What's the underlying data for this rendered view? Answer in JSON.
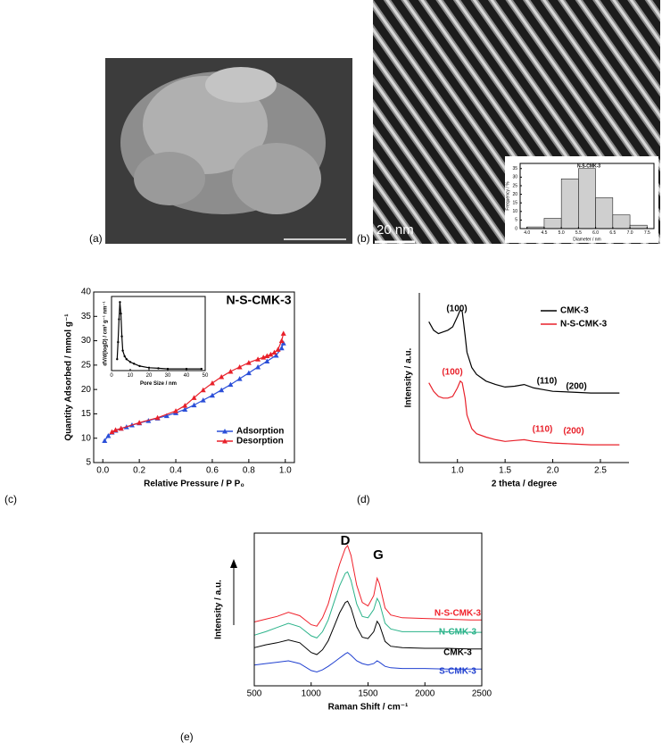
{
  "panels": {
    "a": {
      "label": "(a)"
    },
    "b": {
      "label": "(b)",
      "scale_bar": "20 nm"
    },
    "c": {
      "label": "(c)"
    },
    "d": {
      "label": "(d)"
    },
    "e": {
      "label": "(e)"
    }
  },
  "chart_data": [
    {
      "type": "histogram",
      "title": "N-S-CMK-3",
      "x_label": "Diameter / nm",
      "y_label": "Frequency / %",
      "bins": [
        4.0,
        4.5,
        5.0,
        5.5,
        6.0,
        6.5,
        7.0,
        7.5
      ],
      "values": [
        1,
        6,
        29,
        35,
        18,
        8,
        2
      ],
      "color": "#cfcfcf",
      "xlim": [
        3.8,
        7.7
      ],
      "ylim": [
        0,
        38
      ],
      "xticks": [
        {
          "value": 4.0,
          "label": "4.0"
        },
        {
          "value": 4.5,
          "label": "4.5"
        },
        {
          "value": 5.0,
          "label": "5.0"
        },
        {
          "value": 5.5,
          "label": "5.5"
        },
        {
          "value": 6.0,
          "label": "6.0"
        },
        {
          "value": 6.5,
          "label": "6.5"
        },
        {
          "value": 7.0,
          "label": "7.0"
        },
        {
          "value": 7.5,
          "label": "7.5"
        }
      ],
      "yticks": [
        0,
        5,
        10,
        15,
        20,
        25,
        30,
        35
      ]
    },
    {
      "type": "line",
      "title": "N-S-CMK-3",
      "x_label": "Relative Pressure / P P₀",
      "y_label": "Quantity Adsorbed / mmol g⁻¹",
      "xlim": [
        -0.05,
        1.05
      ],
      "ylim": [
        5,
        40
      ],
      "xticks": [
        {
          "value": 0,
          "label": "0.0"
        },
        {
          "value": 0.2,
          "label": "0.2"
        },
        {
          "value": 0.4,
          "label": "0.4"
        },
        {
          "value": 0.6,
          "label": "0.6"
        },
        {
          "value": 0.8,
          "label": "0.8"
        },
        {
          "value": 1.0,
          "label": "1.0"
        }
      ],
      "yticks": [
        5,
        10,
        15,
        20,
        25,
        30,
        35,
        40
      ],
      "marker": "triangle",
      "series": [
        {
          "name": "Adsorption",
          "color": "#2b4fd8",
          "x": [
            0.01,
            0.03,
            0.05,
            0.07,
            0.1,
            0.13,
            0.16,
            0.2,
            0.25,
            0.3,
            0.35,
            0.4,
            0.45,
            0.5,
            0.55,
            0.6,
            0.65,
            0.7,
            0.75,
            0.8,
            0.85,
            0.9,
            0.95,
            0.98,
            0.99
          ],
          "values": [
            9.5,
            10.5,
            11.2,
            11.6,
            12,
            12.3,
            12.7,
            13.1,
            13.6,
            14.1,
            14.6,
            15.2,
            15.9,
            16.8,
            17.8,
            18.8,
            19.9,
            21,
            22.2,
            23.4,
            24.6,
            25.8,
            27,
            28.5,
            29.5
          ]
        },
        {
          "name": "Desorption",
          "color": "#e8202a",
          "x": [
            0.99,
            0.98,
            0.96,
            0.94,
            0.92,
            0.9,
            0.88,
            0.85,
            0.8,
            0.75,
            0.7,
            0.65,
            0.6,
            0.55,
            0.5,
            0.45,
            0.4,
            0.3,
            0.2,
            0.1,
            0.07,
            0.05
          ],
          "values": [
            31.5,
            30,
            28.2,
            27.6,
            27.2,
            26.9,
            26.6,
            26.2,
            25.5,
            24.6,
            23.7,
            22.6,
            21.3,
            19.9,
            18.3,
            16.7,
            15.6,
            14.2,
            13.2,
            12,
            11.7,
            11.3
          ]
        }
      ]
    },
    {
      "type": "line",
      "x_label": "Pore Size / nm",
      "y_label": "dV/d(logD) / cm³ g⁻¹ nm⁻¹",
      "xlim": [
        0,
        50
      ],
      "ylim": [
        0,
        1.3
      ],
      "xticks": [
        0,
        10,
        20,
        30,
        40,
        50
      ],
      "marker": "dot",
      "series": [
        {
          "color": "#000000",
          "x": [
            3,
            3.5,
            4,
            4.5,
            5,
            5.5,
            6,
            7,
            8,
            10,
            12,
            15,
            20,
            25,
            30,
            40,
            48
          ],
          "values": [
            0.2,
            0.5,
            0.9,
            1.2,
            1.0,
            0.6,
            0.35,
            0.25,
            0.2,
            0.15,
            0.12,
            0.08,
            0.05,
            0.04,
            0.03,
            0.03,
            0.03
          ]
        }
      ]
    },
    {
      "type": "line",
      "x_label": "2 theta / degree",
      "y_label": "Intensity / a.u.",
      "xlim": [
        0.6,
        2.8
      ],
      "ylim": [
        0,
        10
      ],
      "xticks": [
        {
          "value": 1.0,
          "label": "1.0"
        },
        {
          "value": 1.5,
          "label": "1.5"
        },
        {
          "value": 2.0,
          "label": "2.0"
        },
        {
          "value": 2.5,
          "label": "2.5"
        }
      ],
      "x": [
        0.7,
        0.75,
        0.8,
        0.85,
        0.9,
        0.95,
        1.0,
        1.03,
        1.05,
        1.08,
        1.1,
        1.15,
        1.2,
        1.3,
        1.4,
        1.5,
        1.6,
        1.7,
        1.8,
        1.9,
        2.0,
        2.2,
        2.4,
        2.7
      ],
      "series": [
        {
          "name": "CMK-3",
          "color": "#000000",
          "values": [
            8.3,
            7.8,
            7.6,
            7.7,
            7.8,
            8.0,
            8.6,
            9.0,
            8.9,
            7.5,
            6.5,
            5.6,
            5.2,
            4.8,
            4.6,
            4.45,
            4.5,
            4.6,
            4.4,
            4.3,
            4.2,
            4.15,
            4.1,
            4.1
          ]
        },
        {
          "name": "N-S-CMK-3",
          "color": "#e8202a",
          "values": [
            4.7,
            4.2,
            3.9,
            3.8,
            3.8,
            3.9,
            4.4,
            4.8,
            4.7,
            3.8,
            2.8,
            2.0,
            1.7,
            1.5,
            1.35,
            1.25,
            1.3,
            1.35,
            1.25,
            1.2,
            1.15,
            1.1,
            1.05,
            1.05
          ]
        }
      ],
      "annotations": [
        {
          "text": "(100)",
          "color": "#000000"
        },
        {
          "text": "(110)",
          "color": "#000000"
        },
        {
          "text": "(200)",
          "color": "#000000"
        },
        {
          "text": "(100)",
          "color": "#e8202a"
        },
        {
          "text": "(110)",
          "color": "#e8202a"
        },
        {
          "text": "(200)",
          "color": "#e8202a"
        }
      ]
    },
    {
      "type": "line",
      "x_label": "Raman Shift / cm⁻¹",
      "y_label": "Intensity / a.u.",
      "xlim": [
        500,
        2500
      ],
      "ylim": [
        -1,
        21
      ],
      "xticks": [
        500,
        1000,
        1500,
        2000,
        2500
      ],
      "x": [
        500,
        600,
        700,
        800,
        900,
        1000,
        1050,
        1100,
        1150,
        1200,
        1250,
        1300,
        1320,
        1350,
        1400,
        1450,
        1500,
        1550,
        1580,
        1600,
        1650,
        1700,
        1800,
        2000,
        2200,
        2400,
        2500
      ],
      "series": [
        {
          "name": "N-S-CMK-3",
          "color": "#f0202a",
          "values": [
            8.2,
            8.6,
            9.0,
            9.6,
            9.1,
            7.8,
            7.6,
            8.8,
            10.8,
            13.8,
            16.5,
            18.8,
            19.2,
            17.8,
            13.5,
            11.0,
            10.5,
            12.0,
            14.5,
            13.7,
            10.2,
            9.2,
            8.8,
            8.7,
            8.6,
            8.5,
            8.5
          ]
        },
        {
          "name": "N-CMK-3",
          "color": "#2bb38a",
          "values": [
            6.3,
            6.8,
            7.4,
            8.0,
            7.5,
            6.2,
            5.9,
            6.8,
            8.5,
            11.0,
            13.4,
            15.2,
            15.4,
            14.2,
            10.8,
            9.0,
            8.8,
            10.0,
            11.6,
            11.0,
            8.0,
            7.2,
            6.8,
            6.8,
            6.8,
            6.7,
            6.7
          ]
        },
        {
          "name": "CMK-3",
          "color": "#000000",
          "values": [
            4.5,
            4.9,
            5.2,
            5.6,
            5.2,
            3.8,
            3.5,
            4.2,
            5.5,
            7.5,
            9.5,
            11.0,
            11.2,
            10.2,
            7.5,
            6.0,
            5.8,
            6.8,
            8.3,
            7.8,
            5.4,
            4.7,
            4.5,
            4.4,
            4.4,
            4.3,
            4.3
          ]
        },
        {
          "name": "S-CMK-3",
          "color": "#2040d0",
          "values": [
            2.0,
            2.2,
            2.4,
            2.6,
            2.2,
            1.2,
            1.0,
            1.3,
            1.8,
            2.4,
            3.0,
            3.6,
            3.8,
            3.4,
            2.6,
            2.2,
            2.0,
            2.2,
            2.6,
            2.4,
            1.8,
            1.6,
            1.5,
            1.5,
            1.4,
            1.4,
            1.4
          ]
        }
      ],
      "annotations": [
        {
          "text": "D",
          "color": "#000000"
        },
        {
          "text": "G",
          "color": "#000000"
        }
      ]
    }
  ]
}
